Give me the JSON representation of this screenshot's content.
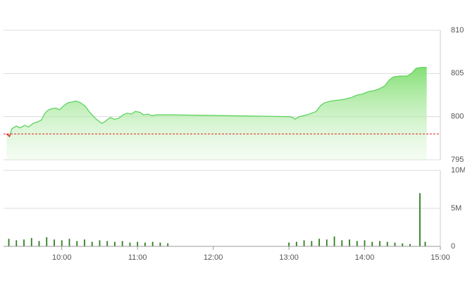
{
  "chart_data": [
    {
      "type": "area",
      "x": [
        9.27,
        9.31,
        9.34,
        9.4,
        9.45,
        9.51,
        9.56,
        9.62,
        9.68,
        9.73,
        9.77,
        9.81,
        9.86,
        9.92,
        9.97,
        10.03,
        10.08,
        10.14,
        10.19,
        10.25,
        10.31,
        10.36,
        10.42,
        10.47,
        10.53,
        10.58,
        10.64,
        10.69,
        10.75,
        10.81,
        10.86,
        10.92,
        10.97,
        11.03,
        11.08,
        11.14,
        11.19,
        11.25,
        11.32,
        11.42,
        11.5,
        12.25,
        13.0,
        13.05,
        13.08,
        13.14,
        13.19,
        13.27,
        13.36,
        13.42,
        13.47,
        13.55,
        13.64,
        13.73,
        13.82,
        13.9,
        13.97,
        14.05,
        14.12,
        14.19,
        14.27,
        14.32,
        14.38,
        14.47,
        14.56,
        14.62,
        14.68,
        14.75,
        14.82
      ],
      "values": [
        798.0,
        797.7,
        798.6,
        798.9,
        798.7,
        799.0,
        798.8,
        799.2,
        799.4,
        799.6,
        800.3,
        800.7,
        800.9,
        801.0,
        800.8,
        801.3,
        801.6,
        801.7,
        801.8,
        801.6,
        801.2,
        800.6,
        800.0,
        799.6,
        799.2,
        799.5,
        799.9,
        799.7,
        799.8,
        800.2,
        800.4,
        800.3,
        800.6,
        800.5,
        800.2,
        800.3,
        800.1,
        800.2,
        800.2,
        800.2,
        800.2,
        800.1,
        800.0,
        799.9,
        799.7,
        800.0,
        800.1,
        800.3,
        800.6,
        801.3,
        801.6,
        801.8,
        801.9,
        802.0,
        802.2,
        802.5,
        802.6,
        802.9,
        803.0,
        803.2,
        803.6,
        804.2,
        804.6,
        804.7,
        804.7,
        805.0,
        805.6,
        805.7,
        805.7
      ],
      "color": "#5fd35f",
      "below_color": "#e02020",
      "reference_value": 798,
      "reference_color": "#e02020",
      "xlim": [
        9.23,
        15
      ],
      "ylim": [
        795,
        810
      ],
      "yticks": [
        795,
        800,
        805,
        810
      ],
      "grid": true
    },
    {
      "type": "bar",
      "x": [
        9.3,
        9.4,
        9.5,
        9.6,
        9.7,
        9.8,
        9.9,
        10.0,
        10.1,
        10.2,
        10.3,
        10.4,
        10.5,
        10.6,
        10.7,
        10.8,
        10.9,
        11.0,
        11.1,
        11.2,
        11.3,
        11.4,
        13.0,
        13.1,
        13.2,
        13.3,
        13.4,
        13.5,
        13.6,
        13.7,
        13.8,
        13.9,
        14.0,
        14.1,
        14.2,
        14.3,
        14.4,
        14.5,
        14.6,
        14.73,
        14.8
      ],
      "values": [
        1000000,
        800000,
        900000,
        1100000,
        700000,
        1200000,
        900000,
        800000,
        1000000,
        700000,
        900000,
        600000,
        800000,
        700000,
        600000,
        700000,
        500000,
        600000,
        500000,
        600000,
        500000,
        400000,
        500000,
        600000,
        800000,
        700000,
        1000000,
        900000,
        1300000,
        800000,
        900000,
        700000,
        800000,
        600000,
        700000,
        600000,
        500000,
        400000,
        300000,
        7000000,
        600000
      ],
      "color": "#2e7d1e",
      "xlim": [
        9.23,
        15
      ],
      "xticks": [
        {
          "value": 10,
          "label": "10:00"
        },
        {
          "value": 11,
          "label": "11:00"
        },
        {
          "value": 12,
          "label": "12:00"
        },
        {
          "value": 13,
          "label": "13:00"
        },
        {
          "value": 14,
          "label": "14:00"
        },
        {
          "value": 15,
          "label": "15:00"
        }
      ],
      "ylim": [
        0,
        10000000
      ],
      "yticks": [
        {
          "value": 0,
          "label": "0"
        },
        {
          "value": 5000000,
          "label": "5M"
        },
        {
          "value": 10000000,
          "label": "10M"
        }
      ],
      "grid": true
    }
  ]
}
